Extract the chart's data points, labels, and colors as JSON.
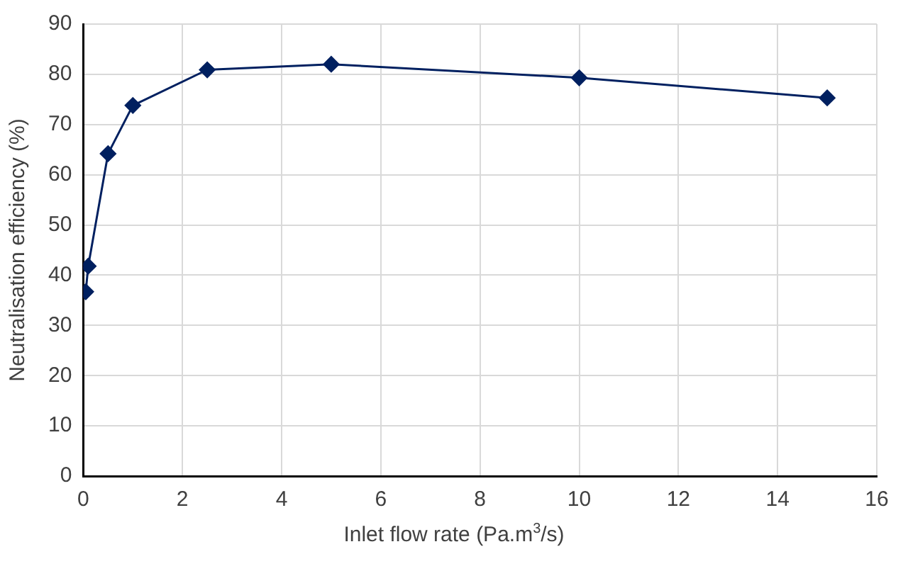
{
  "chart_data": {
    "type": "line",
    "xlabel": "Inlet flow rate (Pa.m$^{3}$/s)",
    "ylabel": "Neutralisation efficiency (%)",
    "x": [
      0.05,
      0.1,
      0.5,
      1,
      2.5,
      5,
      10,
      15
    ],
    "series": [
      {
        "color": "#002060",
        "values": [
          36.7,
          41.8,
          64.2,
          73.8,
          80.9,
          82,
          79.3,
          75.3
        ]
      }
    ],
    "xlim": [
      0,
      16
    ],
    "xticks": [
      0,
      2,
      4,
      6,
      8,
      10,
      12,
      14,
      16
    ],
    "ylim": [
      0,
      90
    ],
    "yticks": [
      0,
      10,
      20,
      30,
      40,
      50,
      60,
      70,
      80,
      90
    ],
    "grid": true,
    "legend": false,
    "marker": "diamond",
    "line_style": "solid"
  }
}
